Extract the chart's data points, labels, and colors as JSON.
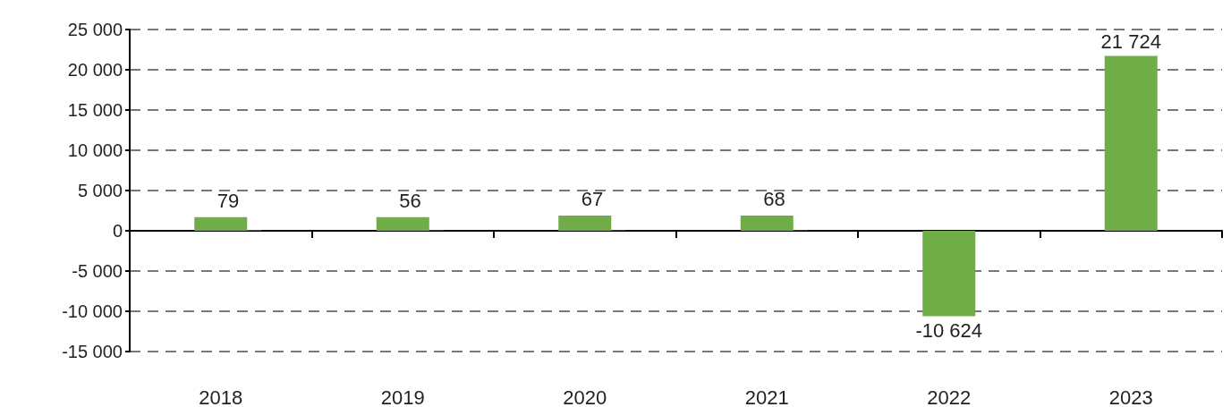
{
  "chart_data": {
    "type": "bar",
    "categories": [
      "2018",
      "2019",
      "2020",
      "2021",
      "2022",
      "2023"
    ],
    "series": [
      {
        "color": "#4472c4",
        "values": [
          79,
          56,
          67,
          68,
          null,
          null
        ],
        "value_labels": [
          "79",
          "56",
          "67",
          "68",
          null,
          null
        ]
      },
      {
        "color": "#70ad47",
        "values": [
          1700,
          1700,
          1900,
          1900,
          -10624,
          21724
        ],
        "value_labels": [
          null,
          null,
          null,
          null,
          "-10 624",
          "21 724"
        ]
      }
    ],
    "ylim": [
      -15000,
      25000
    ],
    "yticks": [
      {
        "value": -15000,
        "label": "-15 000"
      },
      {
        "value": -10000,
        "label": "-10 000"
      },
      {
        "value": -5000,
        "label": "-5 000"
      },
      0,
      {
        "value": 5000,
        "label": "5 000"
      },
      {
        "value": 10000,
        "label": "10 000"
      },
      {
        "value": 15000,
        "label": "15 000"
      },
      {
        "value": 20000,
        "label": "20 000"
      },
      {
        "value": 25000,
        "label": "25 000"
      }
    ],
    "grid": "y"
  }
}
